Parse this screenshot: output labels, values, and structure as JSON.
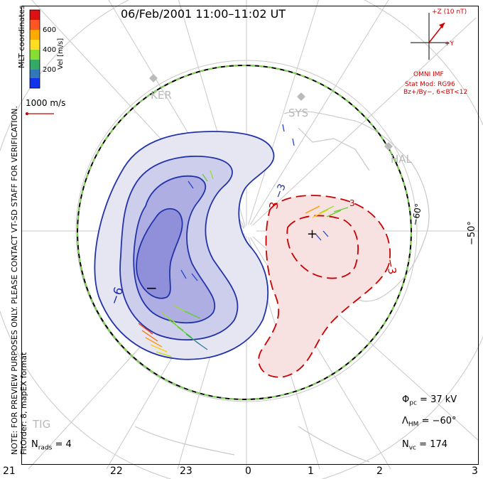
{
  "title": "06/Feb/2001 11:00–11:02 UT",
  "notes": {
    "line1": "NOTE: FOR PREVIEW PURPOSES ONLY. PLEASE CONTACT VT-SD STAFF FOR VERIFICATION.",
    "line2": "FitOrder: 8, mapEX format"
  },
  "mlt_label": "MLT coordinates",
  "colorbar": {
    "label": "Vel [m/s]",
    "ticks": [
      "600",
      "400",
      "200"
    ]
  },
  "reference_vector": "1000 m/s",
  "imf": {
    "z_label": "+Z (10 nT)",
    "y_label": "+Y",
    "source": "OMNI IMF",
    "model": "Stat Mod: RG96",
    "condition": "Bz+/By−, 6<BT<12"
  },
  "stations": [
    "KER",
    "SYS",
    "HAL",
    "TIG"
  ],
  "latitude_labels": [
    "−50°",
    "−60°"
  ],
  "contour_labels": [
    "−6",
    "−3",
    "3",
    "−3",
    "3"
  ],
  "potential_markers": {
    "min": "−",
    "max": "+"
  },
  "stats": {
    "phi_pc": "37 kV",
    "lambda_hm": "−60°",
    "n_vc": "174",
    "n_rads": "4"
  },
  "mlt_ticks": [
    "21",
    "22",
    "23",
    "0",
    "1",
    "2",
    "3"
  ],
  "colors": {
    "negative_cell": "#2233aa",
    "positive_cell": "#cc0000",
    "neg_fill": "#e6e6f2",
    "pos_fill": "#f7e1e1"
  }
}
